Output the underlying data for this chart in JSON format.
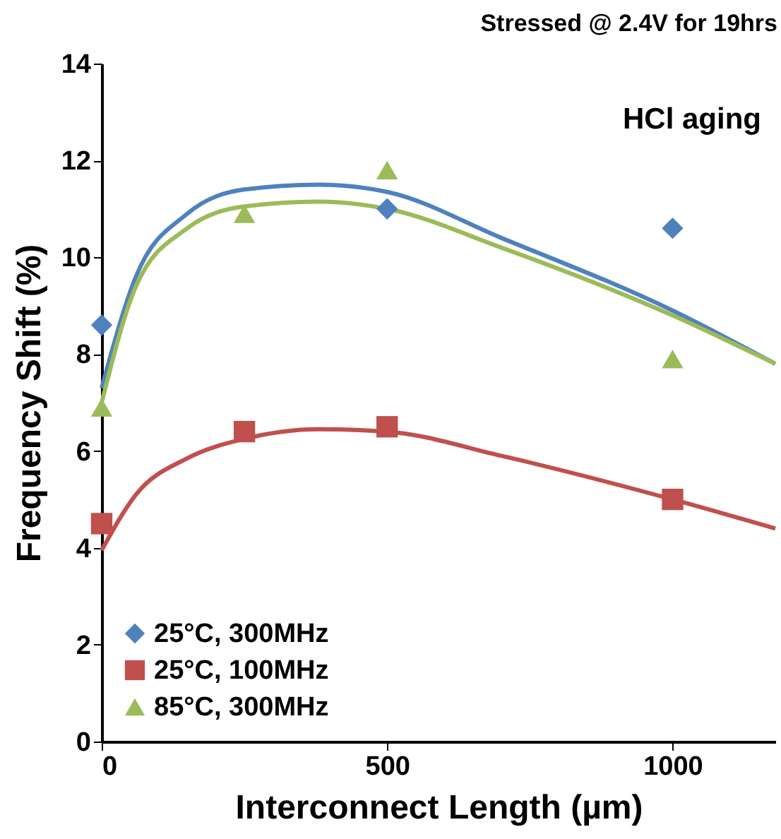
{
  "chart_data": {
    "type": "scatter",
    "title": "Stressed @ 2.4V for 19hrs",
    "xlabel": "Interconnect Length (µm)",
    "ylabel": "Frequency Shift (%)",
    "annotations": [
      "HCl aging"
    ],
    "xlim": [
      0,
      1180
    ],
    "xticks": [
      0,
      500,
      1000
    ],
    "ylim": [
      0,
      14
    ],
    "yticks": [
      0,
      2,
      4,
      6,
      8,
      10,
      12,
      14
    ],
    "grid": false,
    "legend": "bottom left",
    "series": [
      {
        "type": "line",
        "color": "#4f81bd",
        "x": [
          0,
          60,
          150,
          250,
          380,
          500,
          700,
          1000,
          1180
        ],
        "values": [
          7.3,
          9.6,
          10.9,
          11.4,
          11.5,
          11.35,
          10.4,
          8.9,
          7.8
        ]
      },
      {
        "type": "line",
        "color": "#9bbb59",
        "x": [
          0,
          60,
          150,
          250,
          380,
          500,
          700,
          1000,
          1180
        ],
        "values": [
          7.0,
          9.4,
          10.6,
          11.05,
          11.15,
          11.0,
          10.2,
          8.8,
          7.8
        ]
      },
      {
        "type": "line",
        "color": "#c0504d",
        "x": [
          0,
          60,
          150,
          250,
          380,
          500,
          700,
          1000,
          1180
        ],
        "values": [
          3.95,
          5.1,
          5.85,
          6.25,
          6.45,
          6.4,
          5.9,
          5.0,
          4.4
        ]
      },
      {
        "name": "25°C, 300MHz",
        "color": "#4f81bd",
        "marker": "diamond",
        "x": [
          0,
          500,
          1000
        ],
        "values": [
          8.6,
          11.0,
          10.6
        ]
      },
      {
        "name": "25°C, 100MHz",
        "color": "#c0504d",
        "marker": "square",
        "x": [
          0,
          250,
          500,
          1000
        ],
        "values": [
          4.5,
          6.4,
          6.5,
          5.0
        ]
      },
      {
        "name": "85°C, 300MHz",
        "color": "#9bbb59",
        "marker": "triangle",
        "x": [
          0,
          250,
          500,
          1000
        ],
        "values": [
          6.9,
          10.9,
          11.8,
          7.9
        ]
      }
    ]
  }
}
